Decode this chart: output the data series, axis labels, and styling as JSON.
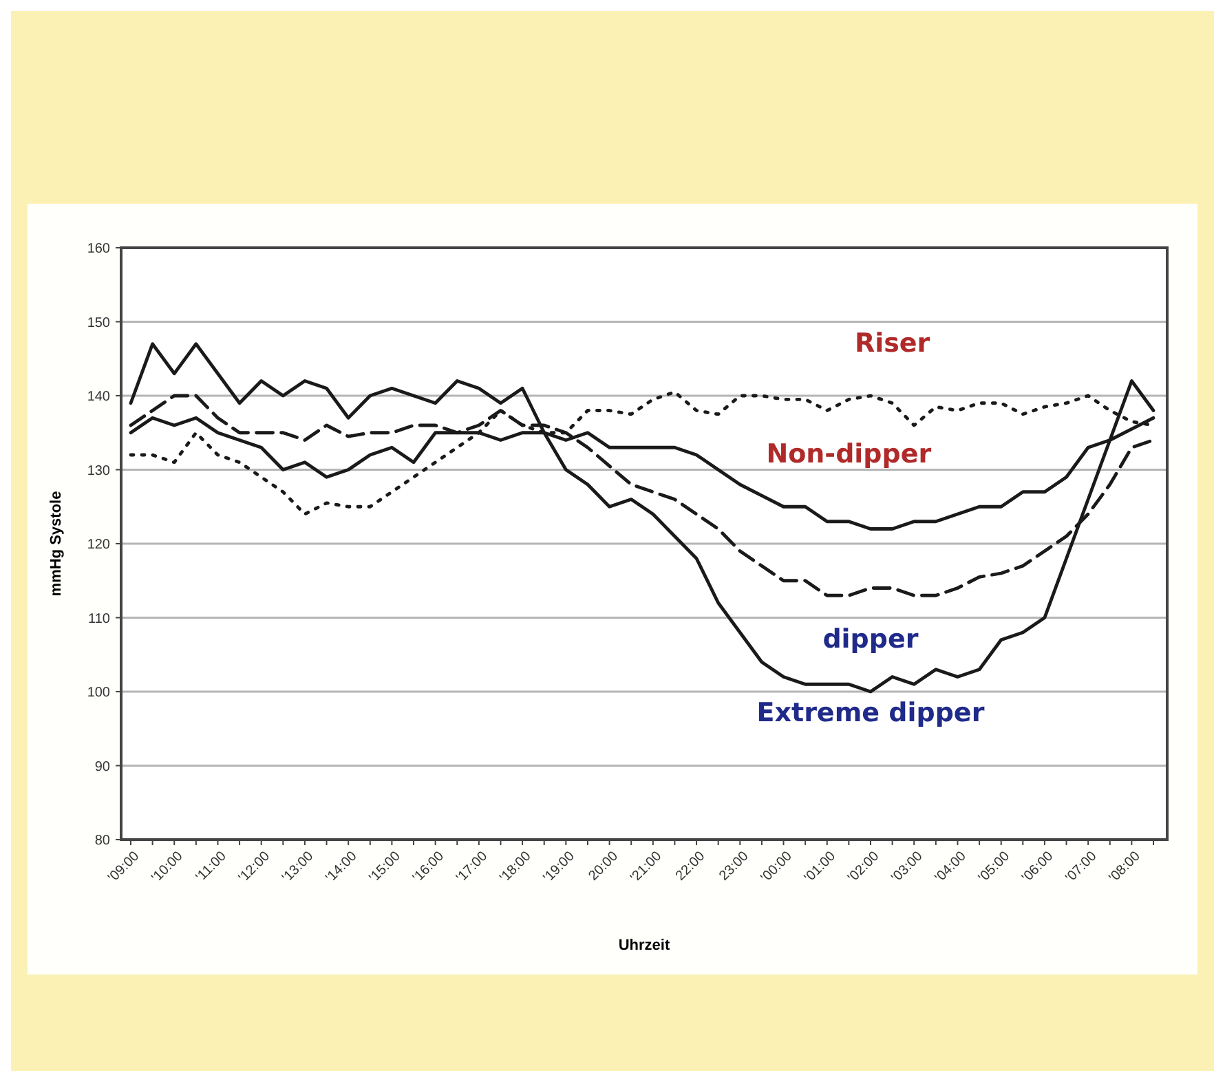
{
  "chart_data": {
    "type": "line",
    "xlabel": "Uhrzeit",
    "ylabel": "mmHg Systole",
    "categories": [
      "'09:00",
      null,
      "'10:00",
      null,
      "'11:00",
      null,
      "'12:00",
      null,
      "'13:00",
      null,
      "'14:00",
      null,
      "'15:00",
      null,
      "'16:00",
      null,
      "'17:00",
      null,
      "'18:00",
      null,
      "'19:00",
      null,
      "20:00",
      null,
      "'21:00",
      null,
      "22:00",
      null,
      "23:00",
      null,
      "'00:00",
      null,
      "'01:00",
      null,
      "'02:00",
      null,
      "'03:00",
      null,
      "'04:00",
      null,
      "'05:00",
      null,
      "'06:00",
      null,
      "'07:00",
      null,
      "'08:00",
      null
    ],
    "ylim": [
      80,
      160
    ],
    "yticks": [
      80,
      90,
      100,
      110,
      120,
      130,
      140,
      150,
      160
    ],
    "grid": "y",
    "marker": "none",
    "series": [
      {
        "name": "Riser",
        "color": "#1a1a1a",
        "line_style": "dotted",
        "values": [
          132,
          132,
          131,
          135,
          132,
          131,
          129,
          127,
          124,
          125.5,
          125,
          125,
          127,
          129,
          131,
          133,
          135,
          138,
          136,
          135,
          135,
          138,
          138,
          137.5,
          139.5,
          140.5,
          138,
          137.5,
          140,
          140,
          139.5,
          139.5,
          138,
          139.5,
          140,
          139,
          136,
          138.5,
          138,
          139,
          139,
          137.5,
          138.5,
          139,
          140,
          138,
          136.5,
          136
        ]
      },
      {
        "name": "Non-dipper",
        "color": "#1a1a1a",
        "line_style": "solid",
        "values": [
          135,
          137,
          136,
          137,
          135,
          134,
          133,
          130,
          131,
          129,
          130,
          132,
          133,
          131,
          135,
          135,
          135,
          134,
          135,
          135,
          134,
          135,
          133,
          133,
          133,
          133,
          132,
          130,
          128,
          126.5,
          125,
          125,
          123,
          123,
          122,
          122,
          123,
          123,
          124,
          125,
          125,
          127,
          127,
          129,
          133,
          134,
          135.5,
          137
        ]
      },
      {
        "name": "dipper",
        "color": "#1a1a1a",
        "line_style": "dashed",
        "values": [
          136,
          138,
          140,
          140,
          137,
          135,
          135,
          135,
          134,
          136,
          134.5,
          135,
          135,
          136,
          136,
          135,
          136,
          138,
          136,
          136,
          135,
          133,
          130.5,
          128,
          127,
          126,
          124,
          122,
          119,
          117,
          115,
          115,
          113,
          113,
          114,
          114,
          113,
          113,
          114,
          115.5,
          116,
          117,
          119,
          121,
          124,
          128,
          133,
          134
        ]
      },
      {
        "name": "Extreme dipper",
        "color": "#1a1a1a",
        "line_style": "solid",
        "values": [
          139,
          147,
          143,
          147,
          143,
          139,
          142,
          140,
          142,
          141,
          137,
          140,
          141,
          140,
          139,
          142,
          141,
          139,
          141,
          135,
          130,
          128,
          125,
          126,
          124,
          121,
          118,
          112,
          108,
          104,
          102,
          101,
          101,
          101,
          100,
          102,
          101,
          103,
          102,
          103,
          107,
          108,
          110,
          118,
          126,
          134,
          142,
          138
        ]
      }
    ]
  }
}
